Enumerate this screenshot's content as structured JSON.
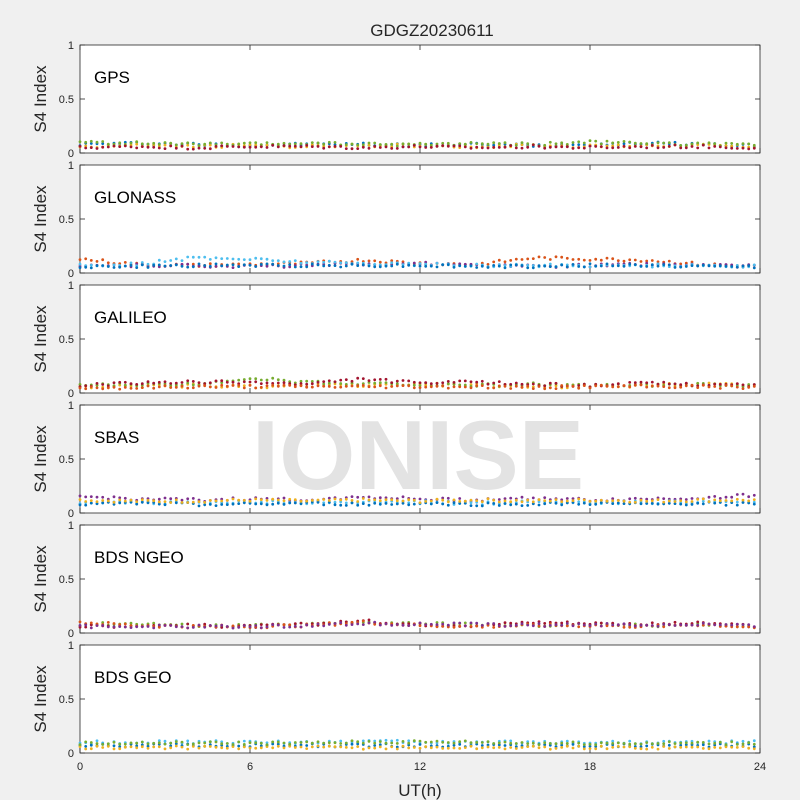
{
  "chart_data": {
    "type": "scatter",
    "title": "GDGZ20230611",
    "xlabel": "UT(h)",
    "ylabel": "S4 Index",
    "xlim": [
      0,
      24
    ],
    "ylim": [
      0,
      1
    ],
    "x_ticks": [
      "0",
      "6",
      "12",
      "18",
      "24"
    ],
    "y_ticks": [
      "0",
      "0.5",
      "1"
    ],
    "watermark": "IONISE",
    "series_colors": [
      "#0072bd",
      "#d95319",
      "#edb120",
      "#7e2f8e",
      "#77ac30",
      "#4dbeee",
      "#a2142f"
    ],
    "panels": [
      {
        "label": "GPS",
        "series": [
          {
            "x": [
              0,
              2,
              4,
              6,
              8,
              10,
              12,
              14,
              16,
              18,
              20,
              22,
              24
            ],
            "y": [
              0.08,
              0.09,
              0.08,
              0.07,
              0.08,
              0.08,
              0.07,
              0.08,
              0.07,
              0.08,
              0.09,
              0.08,
              0.07
            ]
          },
          {
            "x": [
              0,
              2,
              4,
              6,
              8,
              10,
              12,
              14,
              16,
              18,
              20,
              22,
              24
            ],
            "y": [
              0.06,
              0.07,
              0.06,
              0.07,
              0.06,
              0.07,
              0.07,
              0.06,
              0.07,
              0.06,
              0.07,
              0.07,
              0.06
            ]
          },
          {
            "x": [
              0,
              2,
              4,
              6,
              8,
              10,
              12,
              14,
              16,
              18,
              20,
              22,
              24
            ],
            "y": [
              0.1,
              0.09,
              0.08,
              0.08,
              0.09,
              0.08,
              0.08,
              0.09,
              0.08,
              0.1,
              0.09,
              0.08,
              0.08
            ]
          },
          {
            "x": [
              0,
              2,
              4,
              6,
              8,
              10,
              12,
              14,
              16,
              18,
              20,
              22,
              24
            ],
            "y": [
              0.05,
              0.06,
              0.05,
              0.06,
              0.06,
              0.05,
              0.06,
              0.05,
              0.06,
              0.05,
              0.06,
              0.06,
              0.05
            ]
          }
        ]
      },
      {
        "label": "GLONASS",
        "series": [
          {
            "x": [
              0,
              2,
              4,
              6,
              8,
              10,
              12,
              14,
              16,
              18,
              20,
              22,
              24
            ],
            "y": [
              0.13,
              0.08,
              0.07,
              0.08,
              0.09,
              0.12,
              0.09,
              0.08,
              0.14,
              0.13,
              0.12,
              0.08,
              0.06
            ]
          },
          {
            "x": [
              0,
              2,
              4,
              6,
              8,
              10,
              12,
              14,
              16,
              18,
              20,
              22,
              24
            ],
            "y": [
              0.06,
              0.07,
              0.07,
              0.06,
              0.07,
              0.08,
              0.09,
              0.07,
              0.06,
              0.07,
              0.08,
              0.07,
              0.06
            ]
          },
          {
            "x": [
              0,
              2,
              4,
              6,
              8,
              10,
              12,
              14,
              16,
              18,
              20,
              22,
              24
            ],
            "y": [
              0.07,
              0.08,
              0.14,
              0.13,
              0.1,
              0.09,
              0.08,
              0.07,
              0.07,
              0.07,
              0.07,
              0.07,
              0.06
            ]
          },
          {
            "x": [
              0,
              2,
              4,
              6,
              8,
              10,
              12,
              14,
              16,
              18,
              20,
              22,
              24
            ],
            "y": [
              0.06,
              0.06,
              0.07,
              0.07,
              0.07,
              0.07,
              0.07,
              0.06,
              0.06,
              0.07,
              0.07,
              0.06,
              0.06
            ]
          }
        ]
      },
      {
        "label": "GALILEO",
        "series": [
          {
            "x": [
              0,
              2,
              4,
              6,
              8,
              10,
              12,
              14,
              16,
              18,
              20,
              22,
              24
            ],
            "y": [
              0.06,
              0.06,
              0.07,
              0.06,
              0.07,
              0.07,
              0.08,
              0.07,
              0.06,
              0.06,
              0.07,
              0.08,
              0.07
            ]
          },
          {
            "x": [
              0,
              2,
              4,
              6,
              8,
              10,
              12,
              14,
              16,
              18,
              20,
              22,
              24
            ],
            "y": [
              0.07,
              0.08,
              0.08,
              0.14,
              0.1,
              0.09,
              0.08,
              0.07,
              0.08,
              0.07,
              0.07,
              0.08,
              0.07
            ]
          },
          {
            "x": [
              0,
              2,
              4,
              6,
              8,
              10,
              12,
              14,
              16,
              18,
              20,
              22,
              24
            ],
            "y": [
              0.07,
              0.09,
              0.1,
              0.1,
              0.08,
              0.13,
              0.09,
              0.1,
              0.08,
              0.07,
              0.09,
              0.08,
              0.07
            ]
          },
          {
            "x": [
              0,
              2,
              4,
              6,
              8,
              10,
              12,
              14,
              16,
              18,
              20,
              22,
              24
            ],
            "y": [
              0.05,
              0.05,
              0.06,
              0.06,
              0.06,
              0.06,
              0.06,
              0.06,
              0.05,
              0.06,
              0.06,
              0.06,
              0.05
            ]
          }
        ]
      },
      {
        "label": "SBAS",
        "series": [
          {
            "x": [
              0,
              2,
              4,
              6,
              8,
              10,
              12,
              14,
              16,
              18,
              20,
              22,
              24
            ],
            "y": [
              0.15,
              0.13,
              0.12,
              0.13,
              0.12,
              0.15,
              0.13,
              0.12,
              0.14,
              0.12,
              0.13,
              0.14,
              0.17
            ]
          },
          {
            "x": [
              0,
              2,
              4,
              6,
              8,
              10,
              12,
              14,
              16,
              18,
              20,
              22,
              24
            ],
            "y": [
              0.1,
              0.1,
              0.09,
              0.1,
              0.1,
              0.1,
              0.1,
              0.09,
              0.1,
              0.1,
              0.1,
              0.1,
              0.1
            ]
          },
          {
            "x": [
              0,
              2,
              4,
              6,
              8,
              10,
              12,
              14,
              16,
              18,
              20,
              22,
              24
            ],
            "y": [
              0.08,
              0.09,
              0.08,
              0.08,
              0.09,
              0.08,
              0.09,
              0.08,
              0.08,
              0.09,
              0.08,
              0.09,
              0.08
            ]
          },
          {
            "x": [
              0,
              2,
              4,
              6,
              8,
              10,
              12,
              14,
              16,
              18,
              20,
              22,
              24
            ],
            "y": [
              0.12,
              0.11,
              0.11,
              0.12,
              0.11,
              0.12,
              0.11,
              0.12,
              0.11,
              0.12,
              0.11,
              0.12,
              0.12
            ]
          }
        ]
      },
      {
        "label": "BDS NGEO",
        "series": [
          {
            "x": [
              0,
              2,
              4,
              6,
              8,
              10,
              12,
              14,
              16,
              18,
              20,
              22,
              24
            ],
            "y": [
              0.08,
              0.09,
              0.07,
              0.07,
              0.08,
              0.1,
              0.09,
              0.08,
              0.07,
              0.08,
              0.07,
              0.08,
              0.06
            ]
          },
          {
            "x": [
              0,
              2,
              4,
              6,
              8,
              10,
              12,
              14,
              16,
              18,
              20,
              22,
              24
            ],
            "y": [
              0.06,
              0.07,
              0.07,
              0.06,
              0.08,
              0.11,
              0.08,
              0.07,
              0.1,
              0.09,
              0.08,
              0.09,
              0.06
            ]
          },
          {
            "x": [
              0,
              2,
              4,
              6,
              8,
              10,
              12,
              14,
              16,
              18,
              20,
              22,
              24
            ],
            "y": [
              0.1,
              0.07,
              0.06,
              0.06,
              0.07,
              0.1,
              0.07,
              0.06,
              0.07,
              0.07,
              0.06,
              0.08,
              0.05
            ]
          },
          {
            "x": [
              0,
              2,
              4,
              6,
              8,
              10,
              12,
              14,
              16,
              18,
              20,
              22,
              24
            ],
            "y": [
              0.06,
              0.06,
              0.06,
              0.06,
              0.07,
              0.09,
              0.08,
              0.08,
              0.07,
              0.08,
              0.07,
              0.08,
              0.06
            ]
          }
        ]
      },
      {
        "label": "BDS GEO",
        "series": [
          {
            "x": [
              0,
              2,
              4,
              6,
              8,
              10,
              12,
              14,
              16,
              18,
              20,
              22,
              24
            ],
            "y": [
              0.1,
              0.1,
              0.1,
              0.1,
              0.1,
              0.11,
              0.1,
              0.1,
              0.1,
              0.1,
              0.1,
              0.1,
              0.1
            ]
          },
          {
            "x": [
              0,
              2,
              4,
              6,
              8,
              10,
              12,
              14,
              16,
              18,
              20,
              22,
              24
            ],
            "y": [
              0.07,
              0.07,
              0.07,
              0.07,
              0.07,
              0.07,
              0.07,
              0.07,
              0.07,
              0.07,
              0.07,
              0.07,
              0.07
            ]
          },
          {
            "x": [
              0,
              2,
              4,
              6,
              8,
              10,
              12,
              14,
              16,
              18,
              20,
              22,
              24
            ],
            "y": [
              0.05,
              0.05,
              0.05,
              0.05,
              0.05,
              0.05,
              0.05,
              0.05,
              0.05,
              0.05,
              0.05,
              0.05,
              0.05
            ]
          },
          {
            "x": [
              0,
              2,
              4,
              6,
              8,
              10,
              12,
              14,
              16,
              18,
              20,
              22,
              24
            ],
            "y": [
              0.09,
              0.09,
              0.09,
              0.09,
              0.09,
              0.1,
              0.1,
              0.1,
              0.09,
              0.09,
              0.09,
              0.09,
              0.09
            ]
          }
        ]
      }
    ]
  }
}
